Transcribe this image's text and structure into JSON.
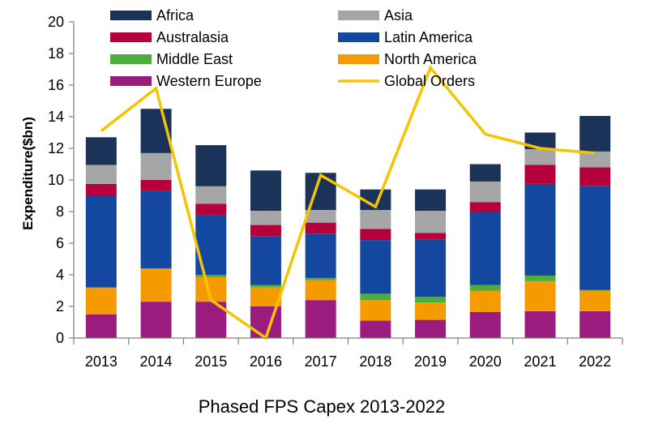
{
  "chart_data": {
    "type": "bar",
    "stacked": true,
    "title": "Phased FPS Capex 2013-2022",
    "xlabel": "",
    "ylabel": "Expenditure($bn)",
    "ylim": [
      0,
      20
    ],
    "yticks": [
      0,
      2,
      4,
      6,
      8,
      10,
      12,
      14,
      16,
      18,
      20
    ],
    "grid": false,
    "legend_position": "top",
    "categories": [
      "2013",
      "2014",
      "2015",
      "2016",
      "2017",
      "2018",
      "2019",
      "2020",
      "2021",
      "2022"
    ],
    "series": [
      {
        "name": "Western Europe",
        "color": "#9b1b7e",
        "values": [
          1.5,
          2.3,
          2.3,
          2.0,
          2.4,
          1.1,
          1.15,
          1.65,
          1.7,
          1.7
        ]
      },
      {
        "name": "North America",
        "color": "#f59a00",
        "values": [
          1.7,
          2.1,
          1.55,
          1.2,
          1.25,
          1.3,
          1.1,
          1.35,
          1.9,
          1.3
        ]
      },
      {
        "name": "Middle East",
        "color": "#4caf3a",
        "values": [
          0.0,
          0.0,
          0.15,
          0.15,
          0.15,
          0.4,
          0.35,
          0.35,
          0.35,
          0.05
        ]
      },
      {
        "name": "Latin America",
        "color": "#1448a0",
        "values": [
          5.8,
          4.9,
          3.8,
          3.1,
          2.8,
          3.4,
          3.65,
          4.65,
          5.8,
          6.55
        ]
      },
      {
        "name": "Australasia",
        "color": "#b5003c",
        "values": [
          0.75,
          0.7,
          0.7,
          0.7,
          0.7,
          0.7,
          0.4,
          0.6,
          1.2,
          1.2
        ]
      },
      {
        "name": "Asia",
        "color": "#a6a6a6",
        "values": [
          1.2,
          1.7,
          1.1,
          0.9,
          0.8,
          1.2,
          1.4,
          1.3,
          1.0,
          1.0
        ]
      },
      {
        "name": "Africa",
        "color": "#1b3358",
        "values": [
          1.75,
          2.8,
          2.6,
          2.55,
          2.35,
          1.3,
          1.35,
          1.1,
          1.05,
          2.25
        ]
      }
    ],
    "line": {
      "name": "Global Orders",
      "color": "#f5c400",
      "values": [
        13.1,
        15.8,
        2.4,
        0.0,
        10.3,
        8.3,
        17.1,
        12.9,
        12.0,
        11.7
      ]
    },
    "legend_entries": [
      {
        "label": "Africa",
        "kind": "box",
        "color": "#1b3358"
      },
      {
        "label": "Asia",
        "kind": "box",
        "color": "#a6a6a6"
      },
      {
        "label": "Australasia",
        "kind": "box",
        "color": "#b5003c"
      },
      {
        "label": "Latin America",
        "kind": "box",
        "color": "#1448a0"
      },
      {
        "label": "Middle East",
        "kind": "box",
        "color": "#4caf3a"
      },
      {
        "label": "North America",
        "kind": "box",
        "color": "#f59a00"
      },
      {
        "label": "Western Europe",
        "kind": "box",
        "color": "#9b1b7e"
      },
      {
        "label": "Global Orders",
        "kind": "line",
        "color": "#f5c400"
      }
    ]
  }
}
